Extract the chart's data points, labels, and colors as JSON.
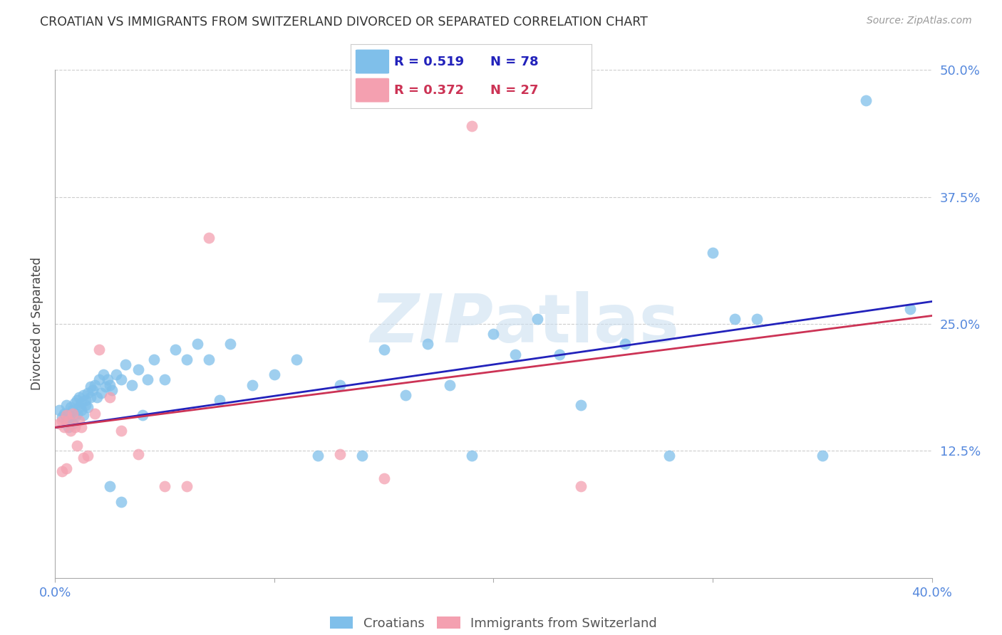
{
  "title": "CROATIAN VS IMMIGRANTS FROM SWITZERLAND DIVORCED OR SEPARATED CORRELATION CHART",
  "source": "Source: ZipAtlas.com",
  "ylabel": "Divorced or Separated",
  "xlim": [
    0.0,
    0.4
  ],
  "ylim": [
    0.0,
    0.5
  ],
  "xticks": [
    0.0,
    0.1,
    0.2,
    0.3,
    0.4
  ],
  "xticklabels": [
    "0.0%",
    "",
    "",
    "",
    "40.0%"
  ],
  "yticks": [
    0.0,
    0.125,
    0.25,
    0.375,
    0.5
  ],
  "yticklabels": [
    "",
    "12.5%",
    "25.0%",
    "37.5%",
    "50.0%"
  ],
  "blue_color": "#7fbfea",
  "pink_color": "#f4a0b0",
  "line_blue": "#2222bb",
  "line_pink": "#cc3355",
  "legend_R_blue": "0.519",
  "legend_N_blue": "78",
  "legend_R_pink": "0.372",
  "legend_N_pink": "27",
  "legend_label_blue": "Croatians",
  "legend_label_pink": "Immigrants from Switzerland",
  "watermark": "ZIPatlas",
  "blue_scatter_x": [
    0.002,
    0.003,
    0.004,
    0.005,
    0.005,
    0.006,
    0.006,
    0.007,
    0.007,
    0.008,
    0.008,
    0.009,
    0.009,
    0.01,
    0.01,
    0.011,
    0.011,
    0.012,
    0.012,
    0.013,
    0.013,
    0.014,
    0.014,
    0.015,
    0.015,
    0.016,
    0.016,
    0.017,
    0.018,
    0.019,
    0.02,
    0.021,
    0.022,
    0.023,
    0.024,
    0.025,
    0.026,
    0.028,
    0.03,
    0.032,
    0.035,
    0.038,
    0.04,
    0.042,
    0.045,
    0.05,
    0.055,
    0.06,
    0.065,
    0.07,
    0.075,
    0.08,
    0.09,
    0.1,
    0.11,
    0.12,
    0.13,
    0.14,
    0.15,
    0.16,
    0.17,
    0.18,
    0.19,
    0.2,
    0.21,
    0.22,
    0.23,
    0.24,
    0.26,
    0.28,
    0.3,
    0.31,
    0.32,
    0.35,
    0.37,
    0.39,
    0.025,
    0.03
  ],
  "blue_scatter_y": [
    0.165,
    0.158,
    0.162,
    0.155,
    0.17,
    0.148,
    0.16,
    0.155,
    0.168,
    0.152,
    0.165,
    0.172,
    0.158,
    0.175,
    0.162,
    0.168,
    0.178,
    0.165,
    0.172,
    0.16,
    0.18,
    0.17,
    0.175,
    0.182,
    0.168,
    0.188,
    0.178,
    0.185,
    0.19,
    0.178,
    0.195,
    0.182,
    0.2,
    0.188,
    0.195,
    0.19,
    0.185,
    0.2,
    0.195,
    0.21,
    0.19,
    0.205,
    0.16,
    0.195,
    0.215,
    0.195,
    0.225,
    0.215,
    0.23,
    0.215,
    0.175,
    0.23,
    0.19,
    0.2,
    0.215,
    0.12,
    0.19,
    0.12,
    0.225,
    0.18,
    0.23,
    0.19,
    0.12,
    0.24,
    0.22,
    0.255,
    0.22,
    0.17,
    0.23,
    0.12,
    0.32,
    0.255,
    0.255,
    0.12,
    0.47,
    0.265,
    0.09,
    0.075
  ],
  "pink_scatter_x": [
    0.002,
    0.003,
    0.004,
    0.005,
    0.006,
    0.007,
    0.008,
    0.009,
    0.01,
    0.011,
    0.012,
    0.013,
    0.015,
    0.018,
    0.02,
    0.025,
    0.03,
    0.038,
    0.05,
    0.06,
    0.07,
    0.13,
    0.15,
    0.19,
    0.24,
    0.003,
    0.005
  ],
  "pink_scatter_y": [
    0.152,
    0.155,
    0.148,
    0.16,
    0.155,
    0.145,
    0.162,
    0.148,
    0.13,
    0.155,
    0.148,
    0.118,
    0.12,
    0.162,
    0.225,
    0.178,
    0.145,
    0.122,
    0.09,
    0.09,
    0.335,
    0.122,
    0.098,
    0.445,
    0.09,
    0.105,
    0.108
  ],
  "blue_line_x": [
    0.0,
    0.4
  ],
  "blue_line_y": [
    0.148,
    0.272
  ],
  "pink_line_x": [
    0.0,
    0.4
  ],
  "pink_line_y": [
    0.148,
    0.258
  ]
}
